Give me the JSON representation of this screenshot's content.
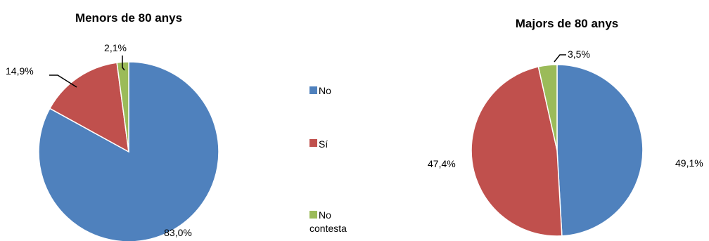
{
  "chart_data": [
    {
      "type": "pie",
      "title": "Menors de 80 anys",
      "categories": [
        "No",
        "Sí",
        "No contesta"
      ],
      "values": [
        83.0,
        14.9,
        2.1
      ],
      "labels": [
        "83,0%",
        "14,9%",
        "2,1%"
      ]
    },
    {
      "type": "pie",
      "title": "Majors de 80 anys",
      "categories": [
        "No",
        "Sí",
        "No contesta"
      ],
      "values": [
        49.1,
        47.4,
        3.5
      ],
      "labels": [
        "49,1%",
        "47,4%",
        "3,5%"
      ]
    }
  ],
  "legend": {
    "placement": "center",
    "items": [
      {
        "line1": "No",
        "line2": "",
        "color": "#4F81BD"
      },
      {
        "line1": "Sí",
        "line2": "",
        "color": "#C0504D"
      },
      {
        "line1": "No",
        "line2": "contesta",
        "color": "#9BBB59"
      }
    ]
  }
}
